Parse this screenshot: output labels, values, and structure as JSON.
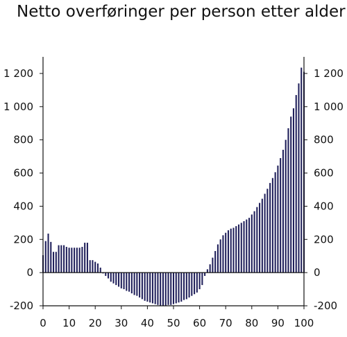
{
  "chart_data": {
    "type": "bar",
    "title": "Netto overføringer per person etter alder",
    "xlabel": "",
    "ylabel": "",
    "xlim": [
      0,
      100
    ],
    "ylim": [
      -200,
      1300
    ],
    "x_ticks": [
      0,
      10,
      20,
      30,
      40,
      50,
      60,
      70,
      80,
      90,
      100
    ],
    "y_ticks": [
      -200,
      0,
      200,
      400,
      600,
      800,
      1000,
      1200
    ],
    "y_tick_labels": [
      "-200",
      "0",
      "200",
      "400",
      "600",
      "800",
      "1 000",
      "1 200"
    ],
    "grid": false,
    "legend": "none",
    "colors": {
      "bars": "#1f1f5a",
      "axis": "#111111"
    },
    "x": [
      0,
      1,
      2,
      3,
      4,
      5,
      6,
      7,
      8,
      9,
      10,
      11,
      12,
      13,
      14,
      15,
      16,
      17,
      18,
      19,
      20,
      21,
      22,
      23,
      24,
      25,
      26,
      27,
      28,
      29,
      30,
      31,
      32,
      33,
      34,
      35,
      36,
      37,
      38,
      39,
      40,
      41,
      42,
      43,
      44,
      45,
      46,
      47,
      48,
      49,
      50,
      51,
      52,
      53,
      54,
      55,
      56,
      57,
      58,
      59,
      60,
      61,
      62,
      63,
      64,
      65,
      66,
      67,
      68,
      69,
      70,
      71,
      72,
      73,
      74,
      75,
      76,
      77,
      78,
      79,
      80,
      81,
      82,
      83,
      84,
      85,
      86,
      87,
      88,
      89,
      90,
      91,
      92,
      93,
      94,
      95,
      96,
      97,
      98,
      99,
      100
    ],
    "values": [
      105,
      190,
      235,
      185,
      125,
      125,
      165,
      165,
      165,
      155,
      150,
      150,
      150,
      150,
      150,
      155,
      180,
      180,
      75,
      75,
      65,
      55,
      30,
      -5,
      -20,
      -35,
      -55,
      -65,
      -75,
      -85,
      -95,
      -100,
      -110,
      -115,
      -125,
      -135,
      -140,
      -150,
      -160,
      -170,
      -175,
      -180,
      -185,
      -190,
      -195,
      -200,
      -200,
      -200,
      -195,
      -195,
      -190,
      -185,
      -180,
      -175,
      -165,
      -160,
      -150,
      -140,
      -130,
      -120,
      -100,
      -75,
      -20,
      20,
      50,
      90,
      130,
      170,
      200,
      225,
      240,
      255,
      265,
      270,
      280,
      290,
      300,
      310,
      320,
      330,
      350,
      370,
      395,
      420,
      445,
      475,
      505,
      540,
      570,
      605,
      645,
      690,
      740,
      800,
      870,
      940,
      990,
      1070,
      1140,
      1235,
      1210
    ]
  }
}
